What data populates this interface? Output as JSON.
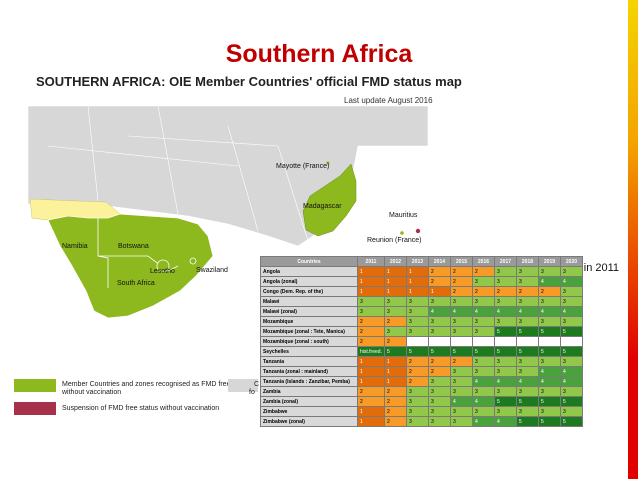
{
  "header": {
    "title": "Southern Africa"
  },
  "map": {
    "subtitle": "SOUTHERN AFRICA: OIE Member Countries' official FMD status map",
    "last_update": "Last update August 2016",
    "labels": {
      "mayotte": "Mayotte (France)",
      "madagascar": "Madagascar",
      "mauritius": "Mauritius",
      "reunion": "Reunion (France)",
      "namibia": "Namibia",
      "botswana": "Botswana",
      "swaziland": "Swaziland",
      "lesotho": "Lesotho",
      "south_africa": "South Africa"
    },
    "legend": {
      "free": "Member Countries and zones recognised as FMD free without vaccination",
      "suspended": "Suspension of FMD free status without vaccination",
      "cut_a": "C",
      "cut_b": "fo"
    },
    "colors": {
      "free": "#8db81e",
      "suspended": "#a5314a",
      "other": "#d7d7d7",
      "zone": "#fbf29b"
    }
  },
  "roadmap": {
    "caption": "Roadmap in 2011",
    "header": [
      "Countries",
      "2011",
      "2012",
      "2013",
      "2014",
      "2015",
      "2016",
      "2017",
      "2018",
      "2019",
      "2020"
    ],
    "rows": [
      {
        "name": "Angola",
        "values": [
          "1",
          "1",
          "1",
          "2",
          "2",
          "2",
          "3",
          "3",
          "3",
          "3"
        ]
      },
      {
        "name": "Angola (zonal)",
        "values": [
          "1",
          "1",
          "1",
          "2",
          "2",
          "3",
          "3",
          "3",
          "4",
          "4"
        ]
      },
      {
        "name": "Congo (Dem. Rep. of the)",
        "values": [
          "1",
          "1",
          "1",
          "1",
          "2",
          "2",
          "2",
          "2",
          "2",
          "3"
        ]
      },
      {
        "name": "Malawi",
        "values": [
          "3",
          "3",
          "3",
          "3",
          "3",
          "3",
          "3",
          "3",
          "3",
          "3"
        ]
      },
      {
        "name": "Malawi (zonal)",
        "values": [
          "3",
          "3",
          "3",
          "4",
          "4",
          "4",
          "4",
          "4",
          "4",
          "4"
        ]
      },
      {
        "name": "Mozambique",
        "values": [
          "2",
          "2",
          "3",
          "3",
          "3",
          "3",
          "3",
          "3",
          "3",
          "3"
        ]
      },
      {
        "name": "Mozambique (zonal : Tete, Manica)",
        "values": [
          "2",
          "3",
          "3",
          "3",
          "3",
          "3",
          "5",
          "5",
          "5",
          "5"
        ]
      },
      {
        "name": "Mozambique (zonal : south)",
        "values": [
          "2",
          "2",
          "",
          "",
          "",
          "",
          "",
          "",
          "",
          ""
        ]
      },
      {
        "name": "Seychelles",
        "values": [
          "hist.freed.",
          "5",
          "5",
          "5",
          "5",
          "5",
          "5",
          "5",
          "5",
          "5"
        ]
      },
      {
        "name": "Tanzania",
        "values": [
          "1",
          "1",
          "2",
          "2",
          "2",
          "3",
          "3",
          "3",
          "3",
          "3"
        ]
      },
      {
        "name": "Tanzania (zonal : mainland)",
        "values": [
          "1",
          "1",
          "2",
          "2",
          "3",
          "3",
          "3",
          "3",
          "4",
          "4"
        ]
      },
      {
        "name": "Tanzania (Islands : Zanzibar, Pemba)",
        "values": [
          "1",
          "1",
          "2",
          "3",
          "3",
          "4",
          "4",
          "4",
          "4",
          "4"
        ]
      },
      {
        "name": "Zambia",
        "values": [
          "2",
          "2",
          "3",
          "3",
          "3",
          "3",
          "3",
          "3",
          "3",
          "3"
        ]
      },
      {
        "name": "Zambia (zonal)",
        "values": [
          "2",
          "2",
          "3",
          "3",
          "4",
          "4",
          "5",
          "5",
          "5",
          "5"
        ]
      },
      {
        "name": "Zimbabwe",
        "values": [
          "1",
          "2",
          "3",
          "3",
          "3",
          "3",
          "3",
          "3",
          "3",
          "3"
        ]
      },
      {
        "name": "Zimbabwe (zonal)",
        "values": [
          "1",
          "2",
          "3",
          "3",
          "3",
          "4",
          "4",
          "5",
          "5",
          "5"
        ]
      }
    ]
  }
}
